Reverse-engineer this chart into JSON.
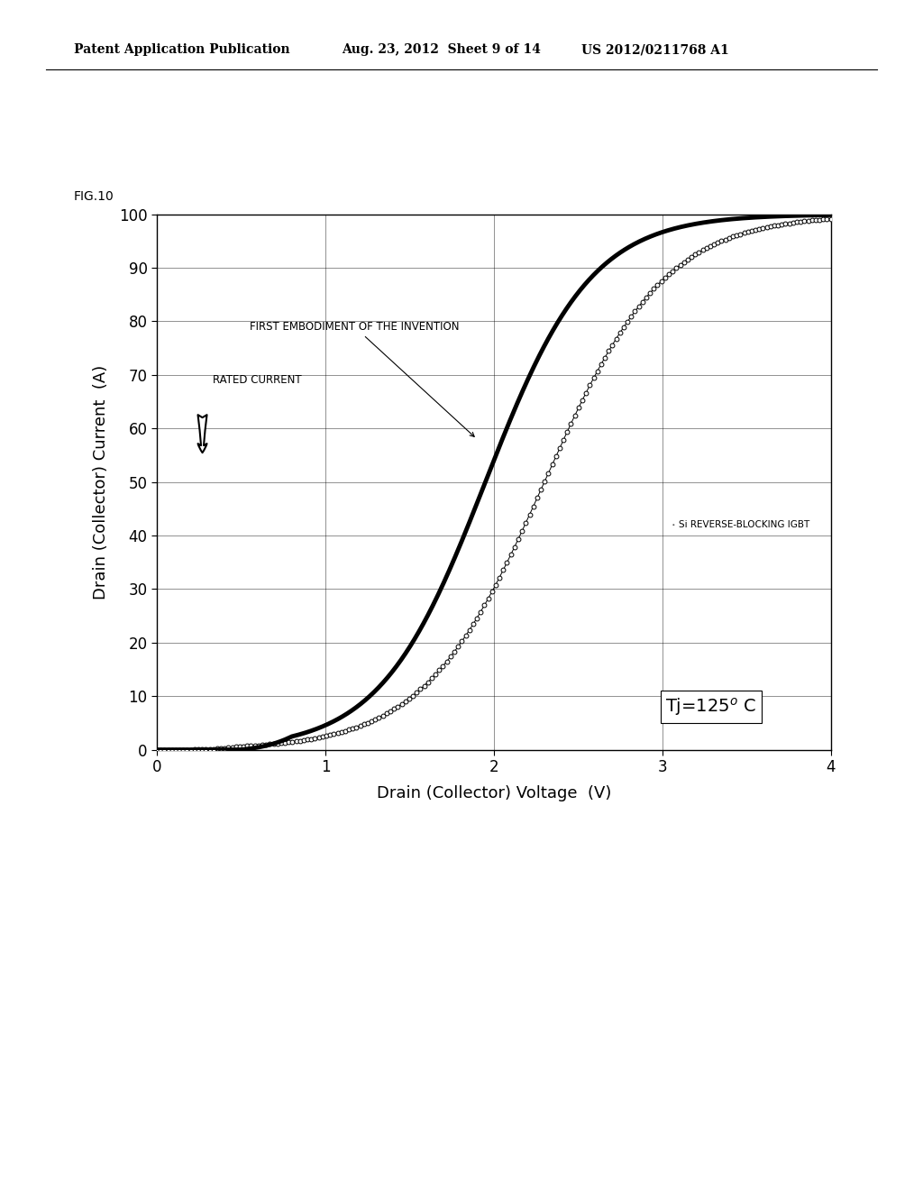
{
  "title": "FIG.10",
  "xlabel": "Drain (Collector) Voltage  (V)",
  "ylabel": "Drain (Collector) Current  (A)",
  "xlim": [
    0,
    4
  ],
  "ylim": [
    0,
    100
  ],
  "xticks": [
    0,
    1,
    2,
    3,
    4
  ],
  "yticks": [
    0,
    10,
    20,
    30,
    40,
    50,
    60,
    70,
    80,
    90,
    100
  ],
  "header_left": "Patent Application Publication",
  "header_mid": "Aug. 23, 2012  Sheet 9 of 14",
  "header_right": "US 2012/0211768 A1",
  "annotation_invention": "FIRST EMBODIMENT OF THE INVENTION",
  "annotation_si": "Si REVERSE-BLOCKING IGBT",
  "annotation_rated": "RATED CURRENT",
  "temp_label": "Tj=125° C",
  "background_color": "#ffffff"
}
